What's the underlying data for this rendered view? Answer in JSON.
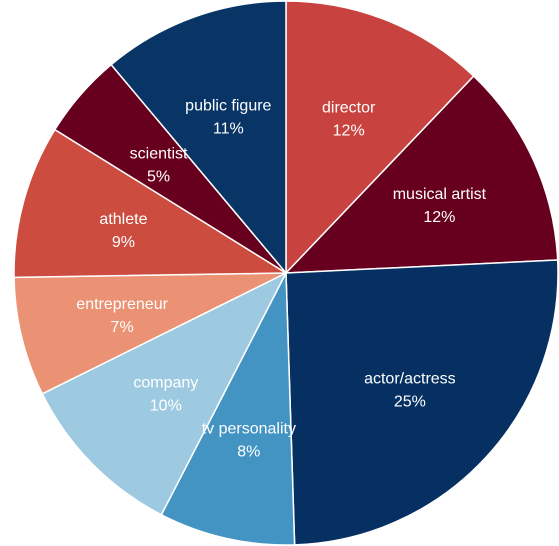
{
  "chart_data": {
    "type": "pie",
    "title": "",
    "slices": [
      {
        "label": "director",
        "pct_text": "12%",
        "value": 12,
        "color": "#c8433f",
        "text_color": "#ffffff"
      },
      {
        "label": "musical artist",
        "pct_text": "12%",
        "value": 12,
        "color": "#67001f",
        "text_color": "#ffffff"
      },
      {
        "label": "actor/actress",
        "pct_text": "25%",
        "value": 25,
        "color": "#053061",
        "text_color": "#ffffff"
      },
      {
        "label": "tv personality",
        "pct_text": "8%",
        "value": 8,
        "color": "#4393c3",
        "text_color": "#ffffff"
      },
      {
        "label": "company",
        "pct_text": "10%",
        "value": 10,
        "color": "#9ecae1",
        "text_color": "#ffffff"
      },
      {
        "label": "entrepreneur",
        "pct_text": "7%",
        "value": 7,
        "color": "#ea9273",
        "text_color": "#ffffff"
      },
      {
        "label": "athlete",
        "pct_text": "9%",
        "value": 9,
        "color": "#cc4c3f",
        "text_color": "#ffffff"
      },
      {
        "label": "scientist",
        "pct_text": "5%",
        "value": 5,
        "color": "#67001f",
        "text_color": "#ffffff"
      },
      {
        "label": "public figure",
        "pct_text": "11%",
        "value": 11,
        "color": "#093566",
        "text_color": "#ffffff"
      }
    ]
  }
}
